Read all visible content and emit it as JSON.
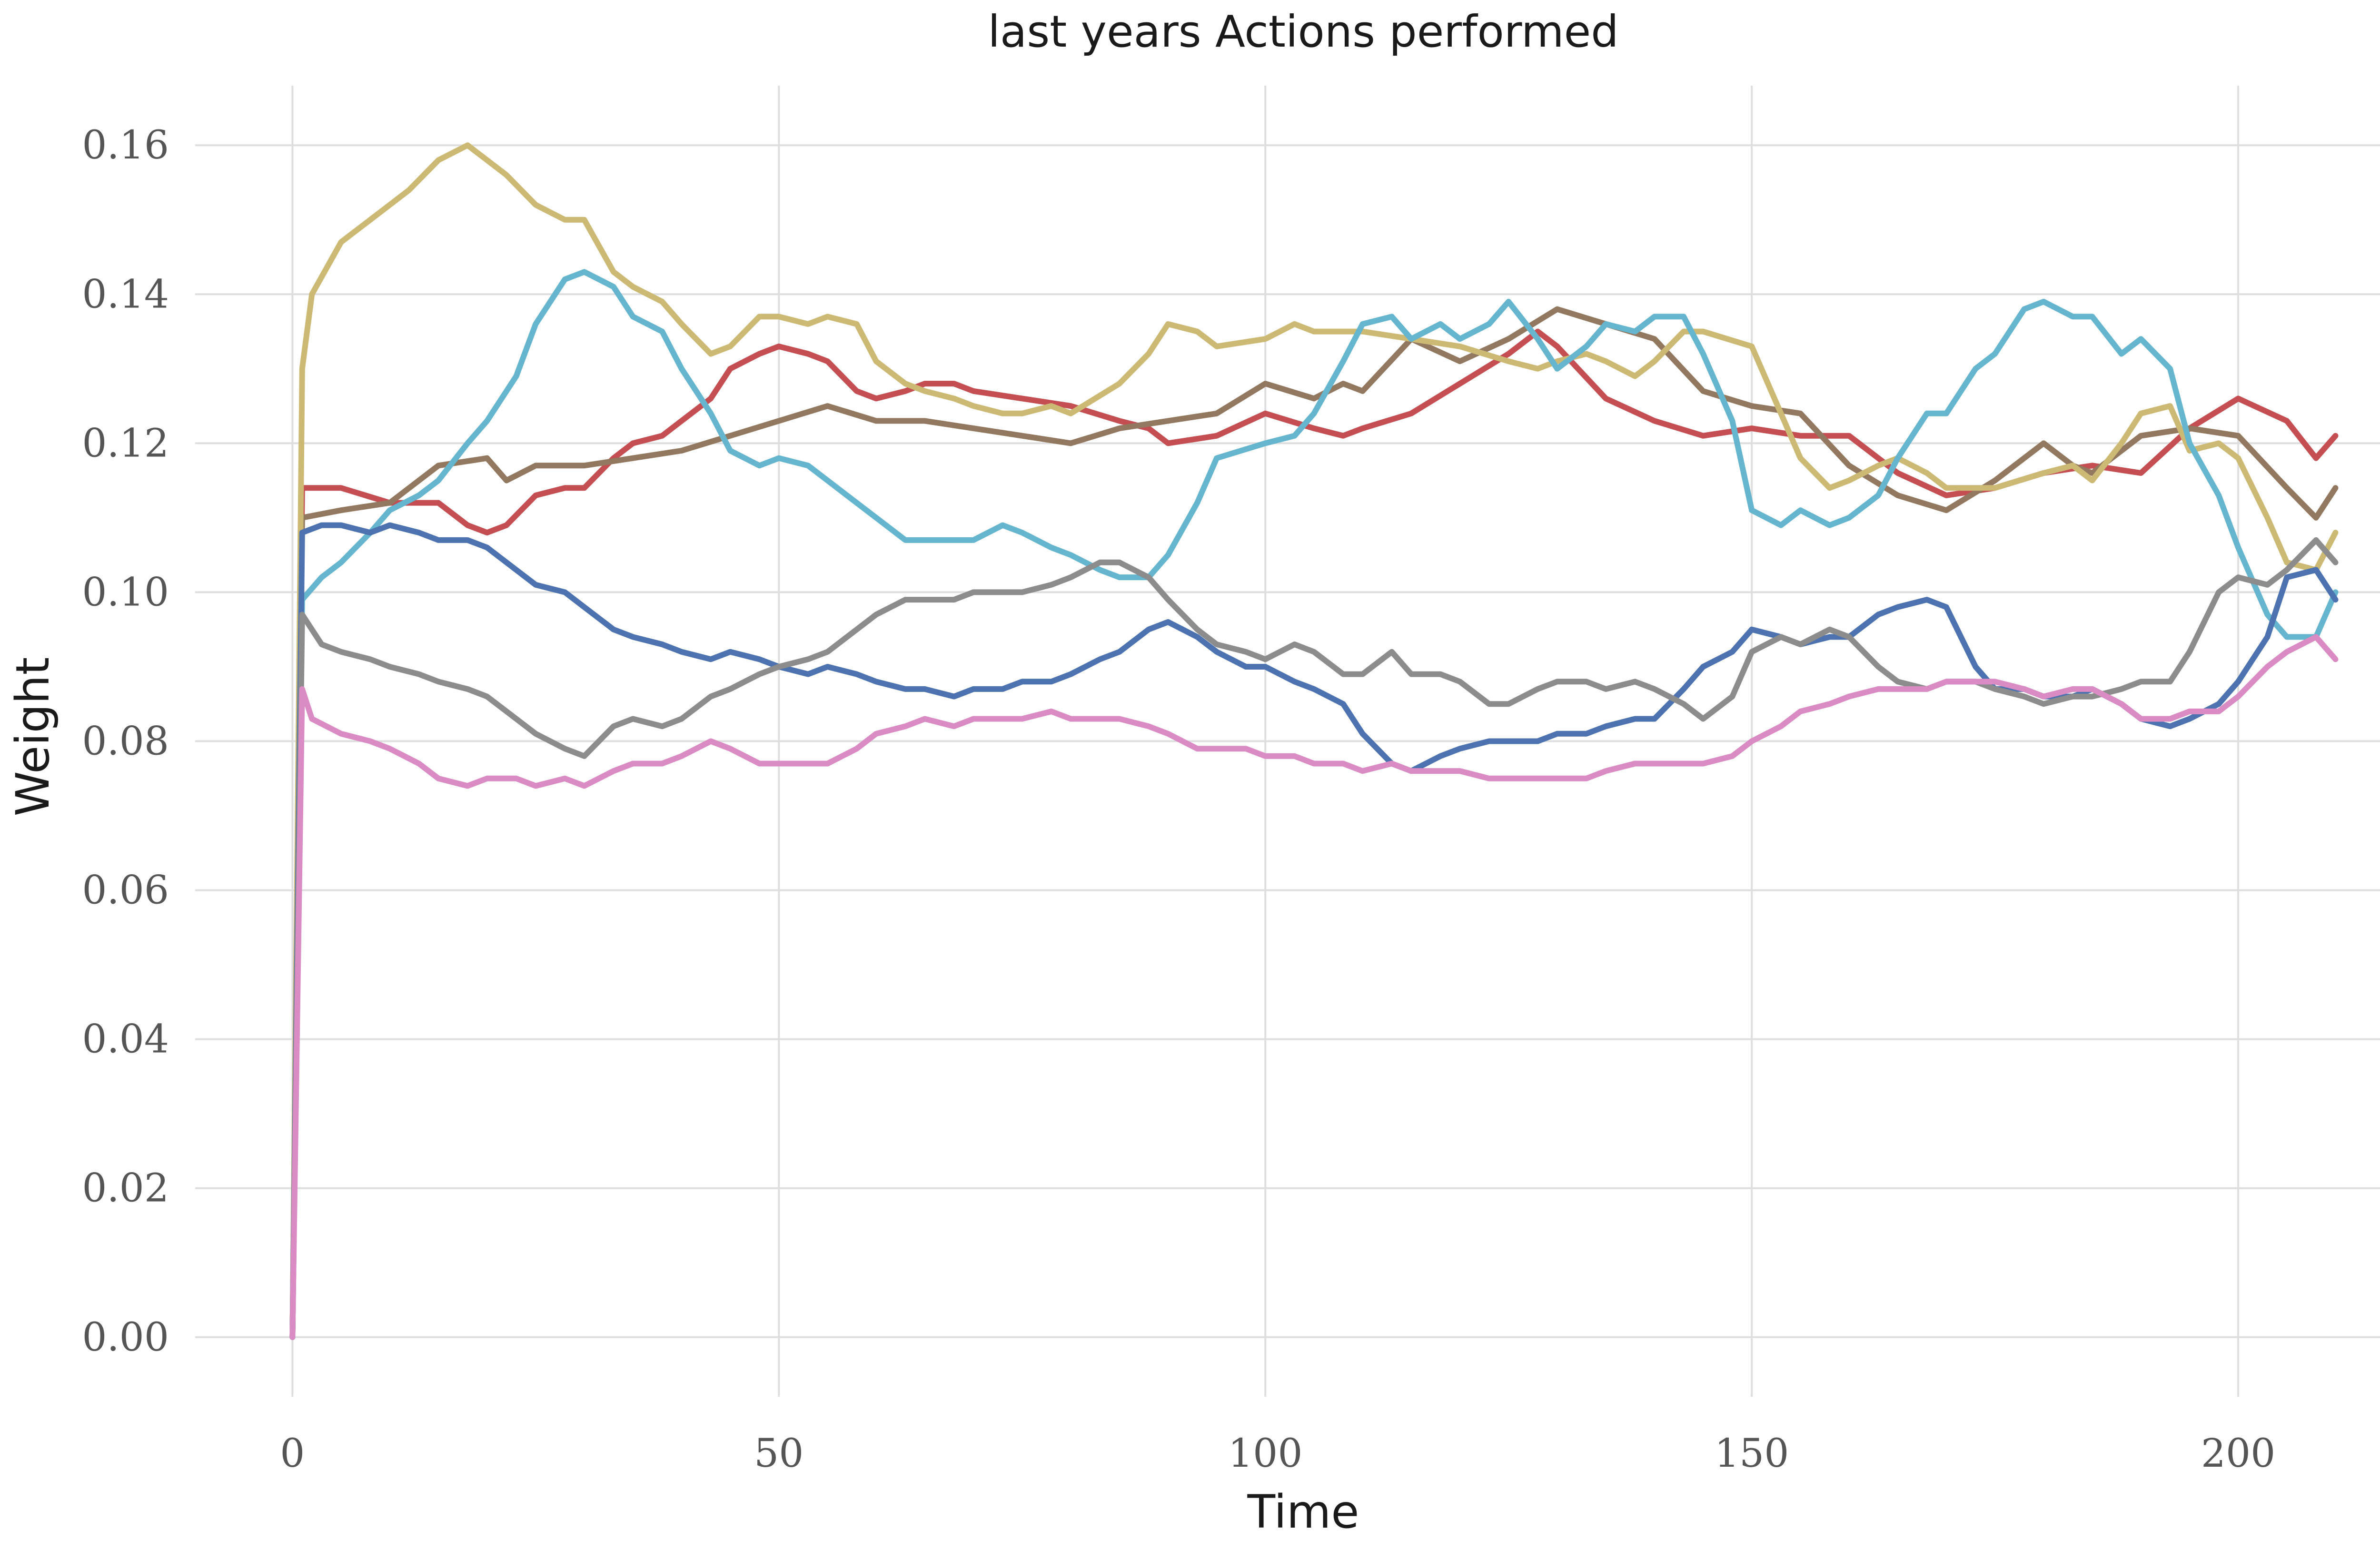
{
  "chart_data": {
    "type": "line",
    "title": "last years Actions performed",
    "xlabel": "Time",
    "ylabel": "Weight",
    "xlim": [
      -10,
      218
    ],
    "ylim": [
      -0.008,
      0.168
    ],
    "xticks": [
      0,
      50,
      100,
      150,
      200
    ],
    "xtick_labels": [
      "0",
      "50",
      "100",
      "150",
      "200"
    ],
    "yticks": [
      0.0,
      0.02,
      0.04,
      0.06,
      0.08,
      0.1,
      0.12,
      0.14,
      0.16
    ],
    "ytick_labels": [
      "0.00",
      "0.02",
      "0.04",
      "0.06",
      "0.08",
      "0.10",
      "0.12",
      "0.14",
      "0.16"
    ],
    "grid": true,
    "legend": "none",
    "series": [
      {
        "color": "#c44e52",
        "x": [
          0,
          1,
          5,
          10,
          15,
          18,
          20,
          22,
          25,
          28,
          30,
          33,
          35,
          38,
          40,
          43,
          45,
          48,
          50,
          53,
          55,
          58,
          60,
          63,
          65,
          68,
          70,
          75,
          80,
          85,
          88,
          90,
          95,
          100,
          105,
          108,
          110,
          115,
          120,
          125,
          128,
          130,
          135,
          140,
          145,
          150,
          155,
          160,
          165,
          170,
          175,
          180,
          185,
          190,
          195,
          200,
          205,
          208,
          210
        ],
        "y": [
          0.0,
          0.114,
          0.114,
          0.112,
          0.112,
          0.109,
          0.108,
          0.109,
          0.113,
          0.114,
          0.114,
          0.118,
          0.12,
          0.121,
          0.123,
          0.126,
          0.13,
          0.132,
          0.133,
          0.132,
          0.131,
          0.127,
          0.126,
          0.127,
          0.128,
          0.128,
          0.127,
          0.126,
          0.125,
          0.123,
          0.122,
          0.12,
          0.121,
          0.124,
          0.122,
          0.121,
          0.122,
          0.124,
          0.128,
          0.132,
          0.135,
          0.133,
          0.126,
          0.123,
          0.121,
          0.122,
          0.121,
          0.121,
          0.116,
          0.113,
          0.114,
          0.116,
          0.117,
          0.116,
          0.122,
          0.126,
          0.123,
          0.118,
          0.121
        ]
      },
      {
        "color": "#937860",
        "x": [
          0,
          1,
          5,
          10,
          15,
          20,
          22,
          25,
          30,
          35,
          40,
          45,
          50,
          55,
          60,
          65,
          70,
          75,
          80,
          85,
          90,
          95,
          100,
          105,
          108,
          110,
          115,
          120,
          125,
          130,
          135,
          140,
          145,
          150,
          155,
          160,
          165,
          170,
          175,
          180,
          183,
          185,
          190,
          195,
          200,
          205,
          208,
          210
        ],
        "y": [
          0.0,
          0.11,
          0.111,
          0.112,
          0.117,
          0.118,
          0.115,
          0.117,
          0.117,
          0.118,
          0.119,
          0.121,
          0.123,
          0.125,
          0.123,
          0.123,
          0.122,
          0.121,
          0.12,
          0.122,
          0.123,
          0.124,
          0.128,
          0.126,
          0.128,
          0.127,
          0.134,
          0.131,
          0.134,
          0.138,
          0.136,
          0.134,
          0.127,
          0.125,
          0.124,
          0.117,
          0.113,
          0.111,
          0.115,
          0.12,
          0.117,
          0.116,
          0.121,
          0.122,
          0.121,
          0.114,
          0.11,
          0.114
        ]
      },
      {
        "color": "#ccb974",
        "x": [
          0,
          1,
          2,
          5,
          8,
          10,
          12,
          15,
          18,
          20,
          22,
          25,
          28,
          30,
          33,
          35,
          38,
          40,
          43,
          45,
          48,
          50,
          53,
          55,
          58,
          60,
          63,
          65,
          68,
          70,
          73,
          75,
          78,
          80,
          85,
          88,
          90,
          93,
          95,
          100,
          103,
          105,
          110,
          115,
          120,
          125,
          128,
          130,
          133,
          135,
          138,
          140,
          143,
          145,
          150,
          153,
          155,
          158,
          160,
          163,
          165,
          168,
          170,
          175,
          180,
          183,
          185,
          188,
          190,
          193,
          195,
          198,
          200,
          203,
          205,
          208,
          210
        ],
        "y": [
          0.0,
          0.13,
          0.14,
          0.147,
          0.15,
          0.152,
          0.154,
          0.158,
          0.16,
          0.158,
          0.156,
          0.152,
          0.15,
          0.15,
          0.143,
          0.141,
          0.139,
          0.136,
          0.132,
          0.133,
          0.137,
          0.137,
          0.136,
          0.137,
          0.136,
          0.131,
          0.128,
          0.127,
          0.126,
          0.125,
          0.124,
          0.124,
          0.125,
          0.124,
          0.128,
          0.132,
          0.136,
          0.135,
          0.133,
          0.134,
          0.136,
          0.135,
          0.135,
          0.134,
          0.133,
          0.131,
          0.13,
          0.131,
          0.132,
          0.131,
          0.129,
          0.131,
          0.135,
          0.135,
          0.133,
          0.124,
          0.118,
          0.114,
          0.115,
          0.117,
          0.118,
          0.116,
          0.114,
          0.114,
          0.116,
          0.117,
          0.115,
          0.12,
          0.124,
          0.125,
          0.119,
          0.12,
          0.118,
          0.11,
          0.104,
          0.103,
          0.108
        ]
      },
      {
        "color": "#64b5cd",
        "x": [
          0,
          1,
          3,
          5,
          8,
          10,
          13,
          15,
          18,
          20,
          23,
          25,
          28,
          30,
          33,
          35,
          38,
          40,
          43,
          45,
          48,
          50,
          53,
          55,
          58,
          60,
          63,
          65,
          68,
          70,
          73,
          75,
          78,
          80,
          83,
          85,
          88,
          90,
          93,
          95,
          100,
          103,
          105,
          108,
          110,
          113,
          115,
          118,
          120,
          123,
          125,
          128,
          130,
          133,
          135,
          138,
          140,
          143,
          145,
          148,
          150,
          153,
          155,
          158,
          160,
          163,
          165,
          168,
          170,
          173,
          175,
          178,
          180,
          183,
          185,
          188,
          190,
          193,
          195,
          198,
          200,
          203,
          205,
          208,
          210
        ],
        "y": [
          0.0,
          0.099,
          0.102,
          0.104,
          0.108,
          0.111,
          0.113,
          0.115,
          0.12,
          0.123,
          0.129,
          0.136,
          0.142,
          0.143,
          0.141,
          0.137,
          0.135,
          0.13,
          0.124,
          0.119,
          0.117,
          0.118,
          0.117,
          0.115,
          0.112,
          0.11,
          0.107,
          0.107,
          0.107,
          0.107,
          0.109,
          0.108,
          0.106,
          0.105,
          0.103,
          0.102,
          0.102,
          0.105,
          0.112,
          0.118,
          0.12,
          0.121,
          0.124,
          0.131,
          0.136,
          0.137,
          0.134,
          0.136,
          0.134,
          0.136,
          0.139,
          0.134,
          0.13,
          0.133,
          0.136,
          0.135,
          0.137,
          0.137,
          0.132,
          0.123,
          0.111,
          0.109,
          0.111,
          0.109,
          0.11,
          0.113,
          0.118,
          0.124,
          0.124,
          0.13,
          0.132,
          0.138,
          0.139,
          0.137,
          0.137,
          0.132,
          0.134,
          0.13,
          0.12,
          0.113,
          0.106,
          0.097,
          0.094,
          0.094,
          0.1
        ]
      },
      {
        "color": "#4c72b0",
        "x": [
          0,
          1,
          3,
          5,
          8,
          10,
          13,
          15,
          18,
          20,
          23,
          25,
          28,
          30,
          33,
          35,
          38,
          40,
          43,
          45,
          48,
          50,
          53,
          55,
          58,
          60,
          63,
          65,
          68,
          70,
          73,
          75,
          78,
          80,
          83,
          85,
          88,
          90,
          93,
          95,
          98,
          100,
          103,
          105,
          108,
          110,
          113,
          115,
          118,
          120,
          123,
          125,
          128,
          130,
          133,
          135,
          138,
          140,
          143,
          145,
          148,
          150,
          153,
          155,
          158,
          160,
          163,
          165,
          168,
          170,
          173,
          175,
          178,
          180,
          183,
          185,
          188,
          190,
          193,
          195,
          198,
          200,
          203,
          205,
          208,
          210
        ],
        "y": [
          0.0,
          0.108,
          0.109,
          0.109,
          0.108,
          0.109,
          0.108,
          0.107,
          0.107,
          0.106,
          0.103,
          0.101,
          0.1,
          0.098,
          0.095,
          0.094,
          0.093,
          0.092,
          0.091,
          0.092,
          0.091,
          0.09,
          0.089,
          0.09,
          0.089,
          0.088,
          0.087,
          0.087,
          0.086,
          0.087,
          0.087,
          0.088,
          0.088,
          0.089,
          0.091,
          0.092,
          0.095,
          0.096,
          0.094,
          0.092,
          0.09,
          0.09,
          0.088,
          0.087,
          0.085,
          0.081,
          0.077,
          0.076,
          0.078,
          0.079,
          0.08,
          0.08,
          0.08,
          0.081,
          0.081,
          0.082,
          0.083,
          0.083,
          0.087,
          0.09,
          0.092,
          0.095,
          0.094,
          0.093,
          0.094,
          0.094,
          0.097,
          0.098,
          0.099,
          0.098,
          0.09,
          0.087,
          0.087,
          0.086,
          0.086,
          0.087,
          0.085,
          0.083,
          0.082,
          0.083,
          0.085,
          0.088,
          0.094,
          0.102,
          0.103,
          0.099
        ]
      },
      {
        "color": "#8c8c8c",
        "x": [
          0,
          1,
          3,
          5,
          8,
          10,
          13,
          15,
          18,
          20,
          23,
          25,
          28,
          30,
          33,
          35,
          38,
          40,
          43,
          45,
          48,
          50,
          53,
          55,
          58,
          60,
          63,
          65,
          68,
          70,
          73,
          75,
          78,
          80,
          83,
          85,
          88,
          90,
          93,
          95,
          98,
          100,
          103,
          105,
          108,
          110,
          113,
          115,
          118,
          120,
          123,
          125,
          128,
          130,
          133,
          135,
          138,
          140,
          143,
          145,
          148,
          150,
          153,
          155,
          158,
          160,
          163,
          165,
          168,
          170,
          173,
          175,
          178,
          180,
          183,
          185,
          188,
          190,
          193,
          195,
          198,
          200,
          203,
          205,
          208,
          210
        ],
        "y": [
          0.0,
          0.097,
          0.093,
          0.092,
          0.091,
          0.09,
          0.089,
          0.088,
          0.087,
          0.086,
          0.083,
          0.081,
          0.079,
          0.078,
          0.082,
          0.083,
          0.082,
          0.083,
          0.086,
          0.087,
          0.089,
          0.09,
          0.091,
          0.092,
          0.095,
          0.097,
          0.099,
          0.099,
          0.099,
          0.1,
          0.1,
          0.1,
          0.101,
          0.102,
          0.104,
          0.104,
          0.102,
          0.099,
          0.095,
          0.093,
          0.092,
          0.091,
          0.093,
          0.092,
          0.089,
          0.089,
          0.092,
          0.089,
          0.089,
          0.088,
          0.085,
          0.085,
          0.087,
          0.088,
          0.088,
          0.087,
          0.088,
          0.087,
          0.085,
          0.083,
          0.086,
          0.092,
          0.094,
          0.093,
          0.095,
          0.094,
          0.09,
          0.088,
          0.087,
          0.088,
          0.088,
          0.087,
          0.086,
          0.085,
          0.086,
          0.086,
          0.087,
          0.088,
          0.088,
          0.092,
          0.1,
          0.102,
          0.101,
          0.103,
          0.107,
          0.104
        ]
      },
      {
        "color": "#da8bc3",
        "x": [
          0,
          1,
          2,
          5,
          8,
          10,
          13,
          15,
          18,
          20,
          23,
          25,
          28,
          30,
          33,
          35,
          38,
          40,
          43,
          45,
          48,
          50,
          53,
          55,
          58,
          60,
          63,
          65,
          68,
          70,
          73,
          75,
          78,
          80,
          83,
          85,
          88,
          90,
          93,
          95,
          98,
          100,
          103,
          105,
          108,
          110,
          113,
          115,
          118,
          120,
          123,
          125,
          128,
          130,
          133,
          135,
          138,
          140,
          143,
          145,
          148,
          150,
          153,
          155,
          158,
          160,
          163,
          165,
          168,
          170,
          173,
          175,
          178,
          180,
          183,
          185,
          188,
          190,
          193,
          195,
          198,
          200,
          203,
          205,
          208,
          210
        ],
        "y": [
          0.0,
          0.087,
          0.083,
          0.081,
          0.08,
          0.079,
          0.077,
          0.075,
          0.074,
          0.075,
          0.075,
          0.074,
          0.075,
          0.074,
          0.076,
          0.077,
          0.077,
          0.078,
          0.08,
          0.079,
          0.077,
          0.077,
          0.077,
          0.077,
          0.079,
          0.081,
          0.082,
          0.083,
          0.082,
          0.083,
          0.083,
          0.083,
          0.084,
          0.083,
          0.083,
          0.083,
          0.082,
          0.081,
          0.079,
          0.079,
          0.079,
          0.078,
          0.078,
          0.077,
          0.077,
          0.076,
          0.077,
          0.076,
          0.076,
          0.076,
          0.075,
          0.075,
          0.075,
          0.075,
          0.075,
          0.076,
          0.077,
          0.077,
          0.077,
          0.077,
          0.078,
          0.08,
          0.082,
          0.084,
          0.085,
          0.086,
          0.087,
          0.087,
          0.087,
          0.088,
          0.088,
          0.088,
          0.087,
          0.086,
          0.087,
          0.087,
          0.085,
          0.083,
          0.083,
          0.084,
          0.084,
          0.086,
          0.09,
          0.092,
          0.094,
          0.091
        ]
      }
    ]
  }
}
